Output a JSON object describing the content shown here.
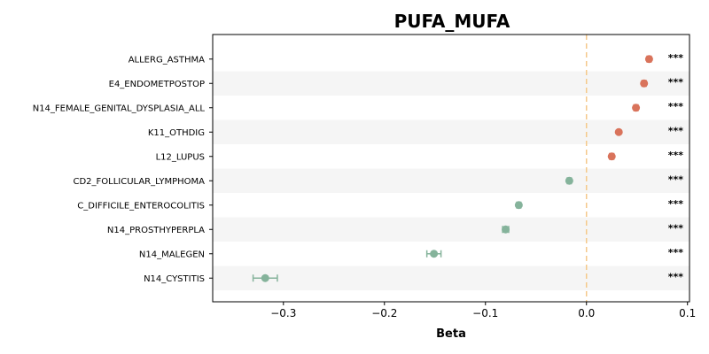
{
  "chart_data": {
    "type": "scatter",
    "title": "PUFA_MUFA",
    "xlabel": "Beta",
    "xlim": [
      -0.37,
      0.102
    ],
    "xticks": [
      -0.3,
      -0.2,
      -0.1,
      0.0,
      0.1
    ],
    "xtick_labels": [
      "−0.3",
      "−0.2",
      "−0.1",
      "0.0",
      "0.1"
    ],
    "reference_line": 0.0,
    "grid": false,
    "colors": {
      "positive": "#d9735b",
      "negative": "#85b39b",
      "reference": "#f5c98a",
      "band": "#f5f5f5"
    },
    "points": [
      {
        "label": "ALLERG_ASTHMA",
        "beta": 0.062,
        "ci": [
          0.06,
          0.064
        ],
        "sig": "***"
      },
      {
        "label": "E4_ENDOMETPOSTOP",
        "beta": 0.057,
        "ci": [
          0.055,
          0.059
        ],
        "sig": "***"
      },
      {
        "label": "N14_FEMALE_GENITAL_DYSPLASIA_ALL",
        "beta": 0.049,
        "ci": [
          0.047,
          0.051
        ],
        "sig": "***"
      },
      {
        "label": "K11_OTHDIG",
        "beta": 0.032,
        "ci": [
          0.031,
          0.033
        ],
        "sig": "***"
      },
      {
        "label": "L12_LUPUS",
        "beta": 0.025,
        "ci": [
          0.023,
          0.027
        ],
        "sig": "***"
      },
      {
        "label": "CD2_FOLLICULAR_LYMPHOMA",
        "beta": -0.017,
        "ci": [
          -0.019,
          -0.015
        ],
        "sig": "***"
      },
      {
        "label": "C_DIFFICILE_ENTEROCOLITIS",
        "beta": -0.067,
        "ci": [
          -0.069,
          -0.065
        ],
        "sig": "***"
      },
      {
        "label": "N14_PROSTHYPERPLA",
        "beta": -0.08,
        "ci": [
          -0.083,
          -0.077
        ],
        "sig": "***"
      },
      {
        "label": "N14_MALEGEN",
        "beta": -0.151,
        "ci": [
          -0.158,
          -0.144
        ],
        "sig": "***"
      },
      {
        "label": "N14_CYSTITIS",
        "beta": -0.318,
        "ci": [
          -0.33,
          -0.306
        ],
        "sig": "***"
      }
    ]
  }
}
